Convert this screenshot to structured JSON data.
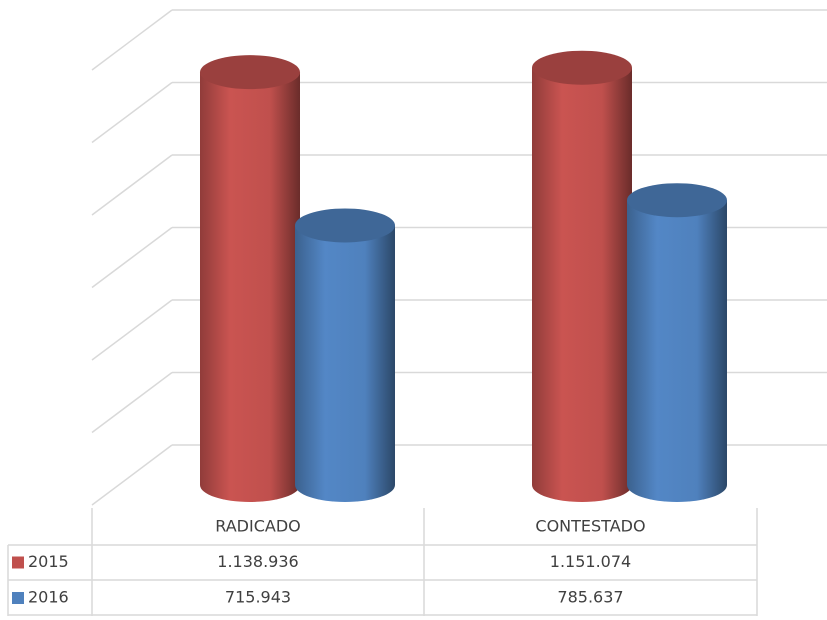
{
  "chart_data": {
    "type": "bar3d",
    "categories": [
      "RADICADO",
      "CONTESTADO"
    ],
    "series": [
      {
        "name": "2015",
        "color": "#c0504d",
        "values": [
          1138936,
          1151074
        ],
        "value_labels": [
          "1.138.936",
          "1.151.074"
        ]
      },
      {
        "name": "2016",
        "color": "#4f81bd",
        "values": [
          715943,
          785637
        ],
        "value_labels": [
          "715.943",
          "785.637"
        ]
      }
    ],
    "ylim": [
      0,
      1200000
    ],
    "yticks": [
      0,
      200000,
      400000,
      600000,
      800000,
      1000000,
      1200000
    ],
    "grid": true
  }
}
